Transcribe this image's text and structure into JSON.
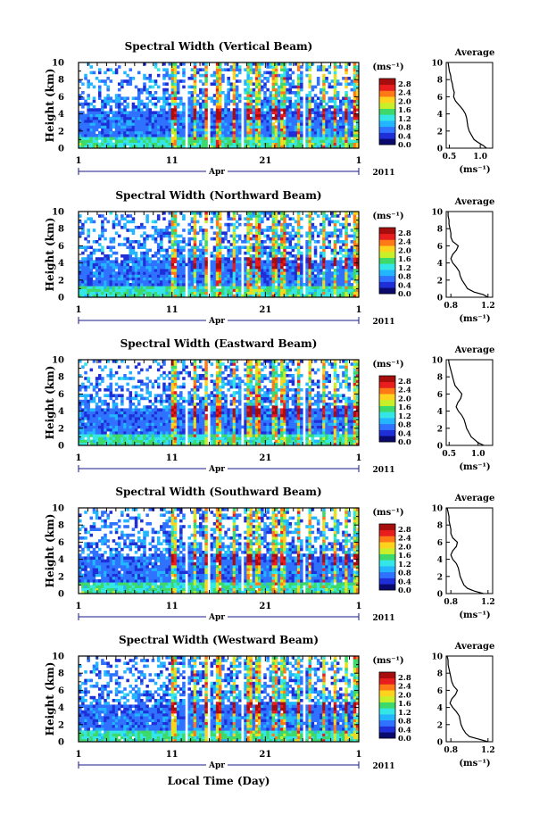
{
  "figure": {
    "xlabel": "Local Time (Day)",
    "month_label": "Apr",
    "year_label": "2011",
    "x_ticks": [
      "1",
      "11",
      "21",
      "1"
    ],
    "y_label": "Height (km)",
    "y_ticks": [
      "0",
      "2",
      "4",
      "6",
      "8",
      "10"
    ],
    "colorbar": {
      "unit": "(ms⁻¹)",
      "ticks": [
        "0.0",
        "0.4",
        "0.8",
        "1.2",
        "1.6",
        "2.0",
        "2.4",
        "2.8"
      ],
      "colors": [
        "#0a0a6e",
        "#1f2fd8",
        "#2f72ff",
        "#23b6ff",
        "#34e6e6",
        "#3dd96a",
        "#c8ef2a",
        "#ffd21e",
        "#ff7a16",
        "#e81d1d",
        "#a80d0d"
      ]
    },
    "avg_title": "Average",
    "avg_unit": "(ms⁻¹)"
  },
  "chart_data": [
    {
      "type": "heatmap",
      "title": "Spectral Width (Vertical Beam)",
      "xlim_days": [
        1,
        31
      ],
      "ylim_km": [
        0,
        10
      ],
      "profile": {
        "type": "line",
        "xticks": [
          "0.5",
          "1.0"
        ],
        "xlim": [
          0.45,
          1.2
        ],
        "height_km": [
          0.0,
          0.3,
          0.6,
          1.0,
          1.5,
          2.0,
          2.5,
          3.0,
          3.5,
          4.0,
          4.5,
          5.0,
          5.5,
          6.0,
          6.5,
          7.0,
          7.5,
          8.0,
          8.5,
          9.0,
          9.5,
          10.0
        ],
        "mean_width": [
          1.1,
          1.05,
          0.98,
          0.9,
          0.86,
          0.82,
          0.8,
          0.79,
          0.78,
          0.76,
          0.72,
          0.66,
          0.6,
          0.57,
          0.58,
          0.56,
          0.55,
          0.53,
          0.52,
          0.5,
          0.49,
          0.48
        ]
      }
    },
    {
      "type": "heatmap",
      "title": "Spectral Width (Northward Beam)",
      "xlim_days": [
        1,
        31
      ],
      "ylim_km": [
        0,
        10
      ],
      "profile": {
        "type": "line",
        "xticks": [
          "0.8",
          "1.2"
        ],
        "xlim": [
          0.75,
          1.25
        ],
        "height_km": [
          0.0,
          0.3,
          0.6,
          1.0,
          1.5,
          2.0,
          2.5,
          3.0,
          3.5,
          4.0,
          4.5,
          5.0,
          5.5,
          6.0,
          6.5,
          7.0,
          7.5,
          8.0,
          8.5,
          9.0,
          9.5,
          10.0
        ],
        "mean_width": [
          1.2,
          1.15,
          1.05,
          0.98,
          0.95,
          0.92,
          0.9,
          0.89,
          0.86,
          0.82,
          0.8,
          0.82,
          0.86,
          0.88,
          0.82,
          0.8,
          0.8,
          0.79,
          0.78,
          0.78,
          0.77,
          0.77
        ]
      }
    },
    {
      "type": "heatmap",
      "title": "Spectral Width (Eastward Beam)",
      "xlim_days": [
        1,
        31
      ],
      "ylim_km": [
        0,
        10
      ],
      "profile": {
        "type": "line",
        "xticks": [
          "0.5",
          "1.0"
        ],
        "xlim": [
          0.45,
          1.25
        ],
        "height_km": [
          0.0,
          0.3,
          0.6,
          1.0,
          1.5,
          2.0,
          2.5,
          3.0,
          3.5,
          4.0,
          4.5,
          5.0,
          5.5,
          6.0,
          6.5,
          7.0,
          7.5,
          8.0,
          8.5,
          9.0,
          9.5,
          10.0
        ],
        "mean_width": [
          1.1,
          1.0,
          0.95,
          0.88,
          0.84,
          0.8,
          0.78,
          0.76,
          0.72,
          0.66,
          0.62,
          0.65,
          0.7,
          0.72,
          0.66,
          0.6,
          0.58,
          0.56,
          0.54,
          0.52,
          0.5,
          0.49
        ]
      }
    },
    {
      "type": "heatmap",
      "title": "Spectral Width (Southward Beam)",
      "xlim_days": [
        1,
        31
      ],
      "ylim_km": [
        0,
        10
      ],
      "profile": {
        "type": "line",
        "xticks": [
          "0.8",
          "1.2"
        ],
        "xlim": [
          0.75,
          1.25
        ],
        "height_km": [
          0.0,
          0.3,
          0.6,
          1.0,
          1.5,
          2.0,
          2.5,
          3.0,
          3.5,
          4.0,
          4.5,
          5.0,
          5.5,
          6.0,
          6.5,
          7.0,
          7.5,
          8.0,
          8.5,
          9.0,
          9.5,
          10.0
        ],
        "mean_width": [
          1.15,
          1.05,
          0.98,
          0.94,
          0.92,
          0.9,
          0.89,
          0.88,
          0.86,
          0.82,
          0.8,
          0.82,
          0.86,
          0.87,
          0.82,
          0.8,
          0.8,
          0.79,
          0.78,
          0.78,
          0.77,
          0.76
        ]
      }
    },
    {
      "type": "heatmap",
      "title": "Spectral Width (Westward Beam)",
      "xlim_days": [
        1,
        31
      ],
      "ylim_km": [
        0,
        10
      ],
      "profile": {
        "type": "line",
        "xticks": [
          "0.8",
          "1.2"
        ],
        "xlim": [
          0.75,
          1.25
        ],
        "height_km": [
          0.0,
          0.3,
          0.6,
          1.0,
          1.5,
          2.0,
          2.5,
          3.0,
          3.5,
          4.0,
          4.5,
          5.0,
          5.5,
          6.0,
          6.5,
          7.0,
          7.5,
          8.0,
          8.5,
          9.0,
          9.5,
          10.0
        ],
        "mean_width": [
          1.2,
          1.1,
          1.0,
          0.96,
          0.93,
          0.91,
          0.9,
          0.89,
          0.86,
          0.82,
          0.79,
          0.81,
          0.85,
          0.87,
          0.83,
          0.81,
          0.8,
          0.79,
          0.78,
          0.77,
          0.77,
          0.76
        ]
      }
    }
  ]
}
